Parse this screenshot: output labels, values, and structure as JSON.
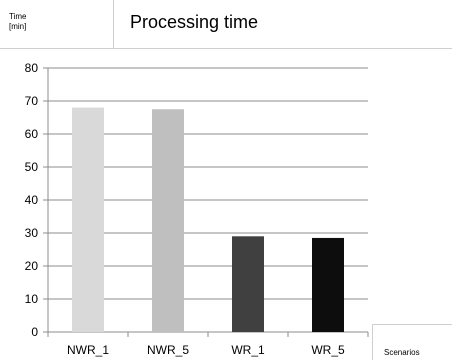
{
  "chart_data": {
    "type": "bar",
    "title": "Processing time",
    "ylabel": "Time\n[min]",
    "xlabel": "Scenarios",
    "categories": [
      "NWR_1",
      "NWR_5",
      "WR_1",
      "WR_5"
    ],
    "values": [
      68,
      67.5,
      29,
      28.5
    ],
    "colors": [
      "#d9d9d9",
      "#bfbfbf",
      "#404040",
      "#0d0d0d"
    ],
    "ylim": [
      0,
      80
    ],
    "yticks": [
      0,
      10,
      20,
      30,
      40,
      50,
      60,
      70,
      80
    ],
    "grid": true
  }
}
